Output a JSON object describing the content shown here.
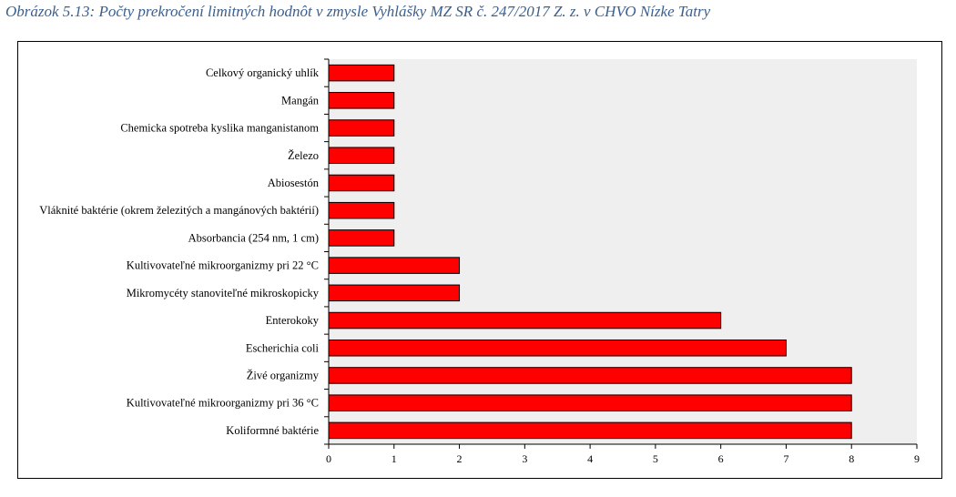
{
  "caption": "Obrázok 5.13: Počty prekročení limitných hodnôt v zmysle Vyhlášky MZ SR č. 247/2017 Z. z. v CHVO Nízke Tatry",
  "chart_data": {
    "type": "bar",
    "orientation": "horizontal",
    "categories": [
      "Celkový organický uhlík",
      "Mangán",
      "Chemicka spotreba kyslika manganistanom",
      "Železo",
      "Abiosestón",
      "Vláknité baktérie (okrem železitých a mangánových baktérií)",
      "Absorbancia (254 nm, 1 cm)",
      "Kultivovateľné mikroorganizmy pri 22 °C",
      "Mikromycéty stanoviteľné mikroskopicky",
      "Enterokoky",
      "Escherichia coli",
      "Živé organizmy",
      "Kultivovateľné mikroorganizmy pri 36 °C",
      "Koliformné baktérie"
    ],
    "values": [
      1,
      1,
      1,
      1,
      1,
      1,
      1,
      2,
      2,
      6,
      7,
      8,
      8,
      8
    ],
    "xlim": [
      0,
      9
    ],
    "xticks": [
      "0",
      "1",
      "2",
      "3",
      "4",
      "5",
      "6",
      "7",
      "8",
      "9"
    ],
    "bar_color": "#ff0000",
    "plot_background": "#efefef",
    "grid": false,
    "legend": false
  }
}
